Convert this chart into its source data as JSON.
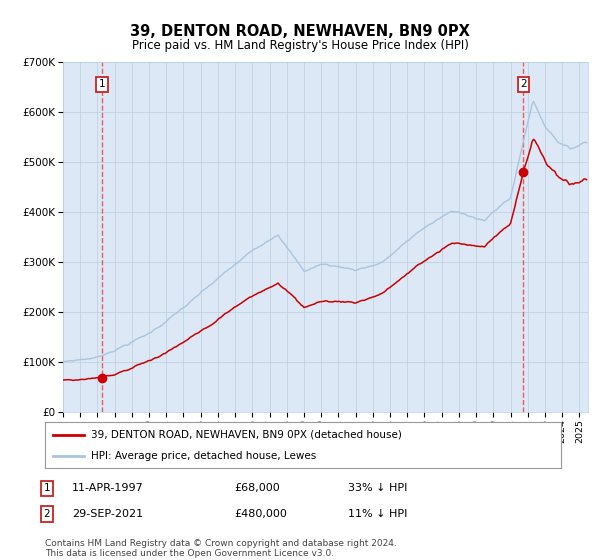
{
  "title": "39, DENTON ROAD, NEWHAVEN, BN9 0PX",
  "subtitle": "Price paid vs. HM Land Registry's House Price Index (HPI)",
  "legend_line1": "39, DENTON ROAD, NEWHAVEN, BN9 0PX (detached house)",
  "legend_line2": "HPI: Average price, detached house, Lewes",
  "annotation1_date": "11-APR-1997",
  "annotation1_price": "£68,000",
  "annotation1_hpi": "33% ↓ HPI",
  "annotation2_date": "29-SEP-2021",
  "annotation2_price": "£480,000",
  "annotation2_hpi": "11% ↓ HPI",
  "footnote": "Contains HM Land Registry data © Crown copyright and database right 2024.\nThis data is licensed under the Open Government Licence v3.0.",
  "hpi_color": "#aac4e0",
  "price_color": "#cc0000",
  "vline_color": "#ee4444",
  "plot_bg": "#dce8f5",
  "ylim": [
    0,
    700000
  ],
  "xlim_start": 1995.0,
  "xlim_end": 2025.5,
  "marker1_x": 1997.27,
  "marker1_y": 68000,
  "marker2_x": 2021.75,
  "marker2_y": 480000
}
